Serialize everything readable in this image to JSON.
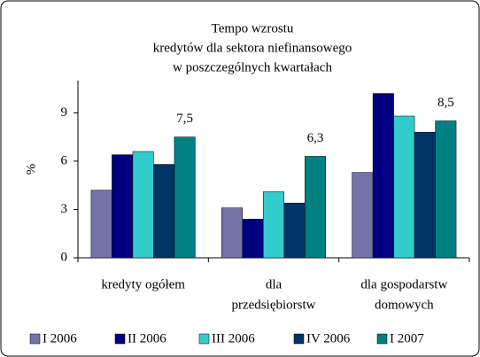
{
  "chart_data": {
    "type": "bar",
    "title": [
      "Tempo wzrostu",
      "kredytów dla sektora niefinansowego",
      "w poszczególnych kwartałach"
    ],
    "y_label": "%",
    "categories": [
      [
        "kredyty ogółem"
      ],
      [
        "dla",
        "przedsiębiorstw"
      ],
      [
        "dla gospodarstw",
        "domowych"
      ]
    ],
    "series": [
      {
        "name": "I 2006",
        "color": "#7373aa",
        "values": [
          4.2,
          3.1,
          5.3
        ]
      },
      {
        "name": "II 2006",
        "color": "#000080",
        "values": [
          6.4,
          2.4,
          10.2
        ]
      },
      {
        "name": "III 2006",
        "color": "#33cccc",
        "values": [
          6.6,
          4.1,
          8.8
        ]
      },
      {
        "name": "IV 2006",
        "color": "#003366",
        "values": [
          5.8,
          3.4,
          7.8
        ]
      },
      {
        "name": "I 2007",
        "color": "#008080",
        "values": [
          7.5,
          6.3,
          8.5
        ],
        "value_labels": [
          "7,5",
          "6,3",
          "8,5"
        ]
      }
    ],
    "ylim": [
      0,
      11
    ],
    "yticks": [
      0,
      3,
      6,
      9
    ]
  }
}
